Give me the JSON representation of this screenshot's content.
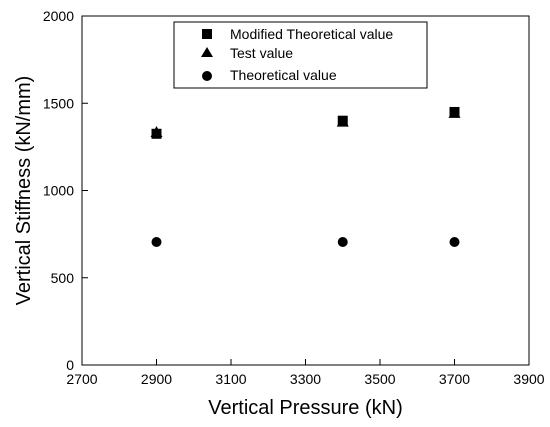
{
  "chart_data": {
    "type": "scatter",
    "title": "",
    "xlabel": "Vertical Pressure (kN)",
    "ylabel": "Vertical Stiffness (kN/mm)",
    "xlim": [
      2700,
      3900
    ],
    "ylim": [
      0,
      2000
    ],
    "x_ticks": [
      2700,
      2900,
      3100,
      3300,
      3500,
      3700,
      3900
    ],
    "y_ticks": [
      0,
      500,
      1000,
      1500,
      2000
    ],
    "grid": false,
    "legend_position": "top-center",
    "series": [
      {
        "name": "Modified Theoretical value",
        "marker": "square",
        "color": "#000000",
        "x": [
          2900,
          3400,
          3700
        ],
        "y": [
          1325,
          1400,
          1450
        ]
      },
      {
        "name": "Test value",
        "marker": "triangle",
        "color": "#000000",
        "x": [
          2900,
          3400,
          3700
        ],
        "y": [
          1335,
          1395,
          1445
        ]
      },
      {
        "name": "Theoretical value",
        "marker": "circle",
        "color": "#000000",
        "x": [
          2900,
          3400,
          3700
        ],
        "y": [
          705,
          705,
          705
        ]
      }
    ]
  }
}
